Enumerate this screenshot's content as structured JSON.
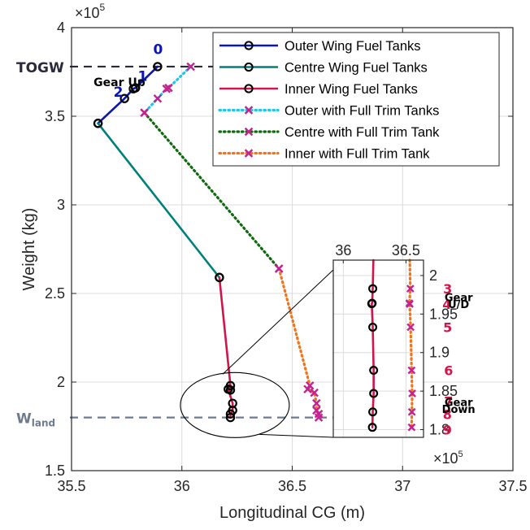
{
  "chart_data": {
    "type": "line",
    "xlabel": "Longitudinal CG (m)",
    "ylabel": "Weight (kg)",
    "xlim": [
      35.5,
      37.5
    ],
    "ylim": [
      150000,
      400000
    ],
    "x_ticks": [
      "35.5",
      "36",
      "36.5",
      "37",
      "37.5"
    ],
    "y_ticks": [
      "1.5",
      "2",
      "2.5",
      "3",
      "3.5",
      "4"
    ],
    "y_exponent": "×10",
    "y_exponent_power": "5",
    "grid": true,
    "legend_position": "top-right",
    "series": [
      {
        "name": "Outer Wing Fuel Tanks",
        "color": "#0b16b5",
        "style": "solid",
        "marker": "circle",
        "points": [
          [
            35.89,
            378000
          ],
          [
            35.79,
            366000
          ],
          [
            35.78,
            365500
          ],
          [
            35.74,
            360000
          ],
          [
            35.62,
            346000
          ]
        ]
      },
      {
        "name": "Centre Wing Fuel Tanks",
        "color": "#00807a",
        "style": "solid",
        "marker": "circle",
        "points": [
          [
            35.62,
            346000
          ],
          [
            36.17,
            259000
          ]
        ]
      },
      {
        "name": "Inner Wing Fuel Tanks",
        "color": "#d0154a",
        "style": "solid",
        "marker": "circle",
        "points": [
          [
            36.17,
            259000
          ],
          [
            36.22,
            198000
          ],
          [
            36.22,
            195500
          ],
          [
            36.21,
            196000
          ],
          [
            36.23,
            188000
          ],
          [
            36.23,
            184000
          ],
          [
            36.22,
            182000
          ],
          [
            36.22,
            180000
          ]
        ]
      },
      {
        "name": "Outer with Full Trim Tanks",
        "color": "#1ec8e6",
        "style": "dotted",
        "marker": "x",
        "points": [
          [
            36.04,
            378000
          ],
          [
            35.94,
            366000
          ],
          [
            35.93,
            365500
          ],
          [
            35.89,
            360000
          ],
          [
            35.83,
            352000
          ]
        ]
      },
      {
        "name": "Centre with Full Trim Tank",
        "color": "#0e6b0e",
        "style": "dotted",
        "marker": "x",
        "points": [
          [
            35.83,
            352000
          ],
          [
            36.44,
            264000
          ]
        ]
      },
      {
        "name": "Inner with Full Trim Tank",
        "color": "#f2731a",
        "style": "dotted",
        "marker": "x",
        "points": [
          [
            36.44,
            264000
          ],
          [
            36.58,
            198000
          ],
          [
            36.57,
            196000
          ],
          [
            36.6,
            194000
          ],
          [
            36.61,
            188000
          ],
          [
            36.61,
            184000
          ],
          [
            36.62,
            182000
          ],
          [
            36.62,
            180000
          ]
        ]
      }
    ],
    "reference_lines": [
      {
        "label": "TOGW",
        "y": 378000,
        "color": "#2a2a3a"
      },
      {
        "label": "W",
        "label_subscript": "land",
        "y": 180000,
        "color": "#6d7b8d"
      }
    ],
    "annotations": {
      "main": [
        {
          "text": "0",
          "x": 35.87,
          "y": 385000,
          "color": "#0b16b5"
        },
        {
          "text": "1",
          "x": 35.8,
          "y": 370000,
          "color": "#0b16b5"
        },
        {
          "text": "2",
          "x": 35.69,
          "y": 361000,
          "color": "#0b16b5"
        },
        {
          "text": "Gear Up",
          "x": 35.6,
          "y": 367000,
          "color": "#000000"
        }
      ],
      "inset": [
        {
          "text": "3",
          "x": 36.833,
          "y": 198300,
          "color": "#d0154a"
        },
        {
          "text": "4",
          "x": 36.827,
          "y": 196300,
          "color": "#d0154a"
        },
        {
          "text": "5",
          "x": 36.833,
          "y": 193300,
          "color": "#d0154a"
        },
        {
          "text": "6",
          "x": 36.84,
          "y": 187700,
          "color": "#d0154a"
        },
        {
          "text": "7",
          "x": 36.84,
          "y": 183700,
          "color": "#d0154a"
        },
        {
          "text": "8",
          "x": 36.83,
          "y": 182000,
          "color": "#d0154a"
        },
        {
          "text": "9",
          "x": 36.83,
          "y": 180000,
          "color": "#d0154a"
        },
        {
          "text": "Gear",
          "x": 36.92,
          "y": 197300,
          "color": "#000000"
        },
        {
          "text": "U/D",
          "x": 36.92,
          "y": 196400,
          "color": "#000000"
        },
        {
          "text": "Gear",
          "x": 36.92,
          "y": 183700,
          "color": "#000000"
        },
        {
          "text": "Down",
          "x": 36.92,
          "y": 182800,
          "color": "#000000"
        }
      ]
    },
    "inset": {
      "xlim": [
        35.92,
        36.64
      ],
      "ylim": [
        179000,
        202000
      ],
      "x_ticks": [
        "36",
        "36.5"
      ],
      "y_ticks": [
        "1.8",
        "1.85",
        "1.9",
        "1.95",
        "2"
      ],
      "y_exponent": "×10",
      "y_exponent_power": "5",
      "series": [
        {
          "color": "#d0154a",
          "style": "solid",
          "marker": "circle",
          "points": [
            [
              36.24,
              202000
            ],
            [
              36.235,
              198300
            ],
            [
              36.23,
              196400
            ],
            [
              36.227,
              196350
            ],
            [
              36.235,
              193300
            ],
            [
              36.242,
              187700
            ],
            [
              36.242,
              184700
            ],
            [
              36.235,
              182300
            ],
            [
              36.232,
              180300
            ]
          ]
        },
        {
          "color": "#f2731a",
          "style": "dotted",
          "marker": "x",
          "points": [
            [
              36.53,
              202000
            ],
            [
              36.535,
              198300
            ],
            [
              36.527,
              196400
            ],
            [
              36.53,
              196300
            ],
            [
              36.537,
              193300
            ],
            [
              36.545,
              187700
            ],
            [
              36.55,
              184700
            ],
            [
              36.547,
              182300
            ],
            [
              36.545,
              180300
            ]
          ]
        }
      ]
    }
  }
}
